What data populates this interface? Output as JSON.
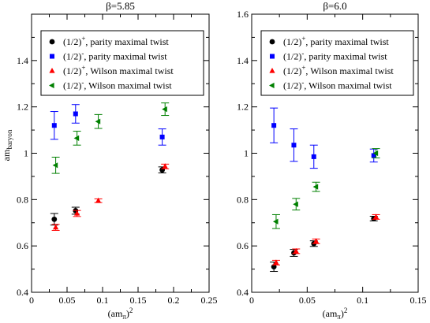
{
  "chart_data": [
    {
      "type": "scatter",
      "title": "β=5.85",
      "xlabel": "(am_π)²",
      "ylabel": "am_baryon",
      "xlim": [
        0,
        0.25
      ],
      "ylim": [
        0.4,
        1.6
      ],
      "xticks": [
        "0",
        "0.05",
        "0.1",
        "0.15",
        "0.2",
        "0.25"
      ],
      "yticks": [
        "0.4",
        "0.6",
        "0.8",
        "1",
        "1.2",
        "1.4"
      ],
      "legend": "top-right",
      "series": [
        {
          "label_base": "(1/2)",
          "label_sup": "+",
          "label_rest": ", parity maximal twist",
          "color": "#000000",
          "marker": "circle",
          "points": [
            {
              "x": 0.032,
              "y": 0.715,
              "err": 0.025
            },
            {
              "x": 0.062,
              "y": 0.752,
              "err": 0.015
            },
            {
              "x": 0.184,
              "y": 0.928,
              "err": 0.013
            }
          ]
        },
        {
          "label_base": "(1/2)",
          "label_sup": "-",
          "label_rest": ", parity maximal twist",
          "color": "#0000ff",
          "marker": "square",
          "points": [
            {
              "x": 0.032,
              "y": 1.12,
              "err": 0.06
            },
            {
              "x": 0.062,
              "y": 1.17,
              "err": 0.04
            },
            {
              "x": 0.184,
              "y": 1.07,
              "err": 0.035
            }
          ]
        },
        {
          "label_base": "(1/2)",
          "label_sup": "+",
          "label_rest": ", Wilson maximal twist",
          "color": "#ff0000",
          "marker": "triangle-up",
          "points": [
            {
              "x": 0.034,
              "y": 0.68,
              "err": 0.013
            },
            {
              "x": 0.064,
              "y": 0.74,
              "err": 0.013
            },
            {
              "x": 0.094,
              "y": 0.795,
              "err": 0.008
            },
            {
              "x": 0.188,
              "y": 0.943,
              "err": 0.01
            }
          ]
        },
        {
          "label_base": "(1/2)",
          "label_sup": "-",
          "label_rest": ", Wilson maximal twist",
          "color": "#008000",
          "marker": "triangle-left",
          "points": [
            {
              "x": 0.034,
              "y": 0.948,
              "err": 0.035
            },
            {
              "x": 0.064,
              "y": 1.065,
              "err": 0.03
            },
            {
              "x": 0.094,
              "y": 1.137,
              "err": 0.03
            },
            {
              "x": 0.188,
              "y": 1.19,
              "err": 0.027
            }
          ]
        }
      ]
    },
    {
      "type": "scatter",
      "title": "β=6.0",
      "xlabel": "(am_π)²",
      "ylabel": "",
      "xlim": [
        0,
        0.15
      ],
      "ylim": [
        0.4,
        1.6
      ],
      "xticks": [
        "0",
        "0.05",
        "0.1",
        "0.15"
      ],
      "yticks": [
        "0.4",
        "0.6",
        "0.8",
        "1",
        "1.2",
        "1.4",
        "1.6"
      ],
      "legend": "top-right",
      "series": [
        {
          "label_base": "(1/2)",
          "label_sup": "+",
          "label_rest": ", parity maximal twist",
          "color": "#000000",
          "marker": "circle",
          "points": [
            {
              "x": 0.02,
              "y": 0.51,
              "err": 0.02
            },
            {
              "x": 0.038,
              "y": 0.57,
              "err": 0.015
            },
            {
              "x": 0.056,
              "y": 0.61,
              "err": 0.012
            },
            {
              "x": 0.11,
              "y": 0.718,
              "err": 0.01
            }
          ]
        },
        {
          "label_base": "(1/2)",
          "label_sup": "-",
          "label_rest": ", parity maximal twist",
          "color": "#0000ff",
          "marker": "square",
          "points": [
            {
              "x": 0.02,
              "y": 1.12,
              "err": 0.075
            },
            {
              "x": 0.038,
              "y": 1.035,
              "err": 0.07
            },
            {
              "x": 0.056,
              "y": 0.985,
              "err": 0.05
            },
            {
              "x": 0.11,
              "y": 0.99,
              "err": 0.028
            }
          ]
        },
        {
          "label_base": "(1/2)",
          "label_sup": "+",
          "label_rest": ", Wilson maximal twist",
          "color": "#ff0000",
          "marker": "triangle-up",
          "points": [
            {
              "x": 0.022,
              "y": 0.528,
              "err": 0.01
            },
            {
              "x": 0.04,
              "y": 0.577,
              "err": 0.01
            },
            {
              "x": 0.058,
              "y": 0.62,
              "err": 0.01
            },
            {
              "x": 0.112,
              "y": 0.725,
              "err": 0.01
            }
          ]
        },
        {
          "label_base": "(1/2)",
          "label_sup": "-",
          "label_rest": ", Wilson maximal twist",
          "color": "#008000",
          "marker": "triangle-left",
          "points": [
            {
              "x": 0.022,
              "y": 0.705,
              "err": 0.03
            },
            {
              "x": 0.04,
              "y": 0.78,
              "err": 0.025
            },
            {
              "x": 0.058,
              "y": 0.855,
              "err": 0.02
            },
            {
              "x": 0.112,
              "y": 1.0,
              "err": 0.02
            }
          ]
        }
      ]
    }
  ]
}
